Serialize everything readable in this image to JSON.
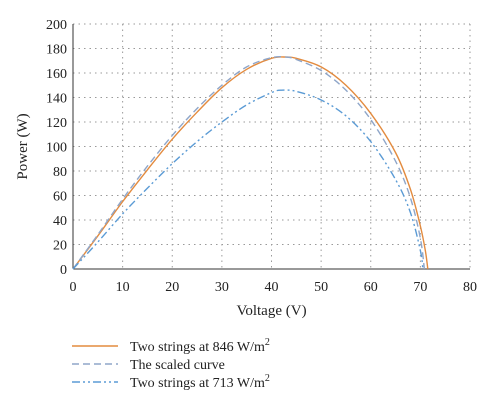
{
  "chart_data": {
    "type": "line",
    "title": "",
    "xlabel": "Voltage (V)",
    "ylabel": "Power (W)",
    "xlim": [
      0,
      80
    ],
    "ylim": [
      0,
      200
    ],
    "xticks": [
      0,
      10,
      20,
      30,
      40,
      50,
      60,
      70,
      80
    ],
    "yticks": [
      0,
      20,
      40,
      60,
      80,
      100,
      120,
      140,
      160,
      180,
      200
    ],
    "grid": "dotted horizontal and vertical",
    "legend_position": "bottom-left",
    "series": [
      {
        "name": "Two strings at 846 W/m2",
        "legend": {
          "base": "Two strings at 846 W/m",
          "sup": "2"
        },
        "color": "#E38B3F",
        "dash": "solid",
        "points": [
          [
            0,
            0
          ],
          [
            5,
            27
          ],
          [
            10,
            55
          ],
          [
            15,
            81
          ],
          [
            20,
            106
          ],
          [
            25,
            128
          ],
          [
            30,
            148
          ],
          [
            35,
            163
          ],
          [
            40,
            172
          ],
          [
            43,
            173
          ],
          [
            45,
            172
          ],
          [
            50,
            165
          ],
          [
            55,
            150
          ],
          [
            60,
            127
          ],
          [
            65,
            95
          ],
          [
            68,
            65
          ],
          [
            70,
            35
          ],
          [
            71,
            15
          ],
          [
            71.5,
            0
          ]
        ]
      },
      {
        "name": "The scaled curve",
        "legend": {
          "base": "The scaled curve",
          "sup": ""
        },
        "color": "#8FA6C9",
        "dash": "dashed",
        "points": [
          [
            0,
            0
          ],
          [
            5,
            28
          ],
          [
            10,
            57
          ],
          [
            15,
            84
          ],
          [
            20,
            109
          ],
          [
            25,
            131
          ],
          [
            30,
            150
          ],
          [
            35,
            165
          ],
          [
            40,
            172.5
          ],
          [
            43,
            173
          ],
          [
            45,
            171
          ],
          [
            50,
            162
          ],
          [
            55,
            146
          ],
          [
            60,
            122
          ],
          [
            65,
            88
          ],
          [
            68,
            58
          ],
          [
            70,
            25
          ],
          [
            70.8,
            0
          ]
        ]
      },
      {
        "name": "Two strings at 713 W/m2",
        "legend": {
          "base": "Two strings at 713 W/m",
          "sup": "2"
        },
        "color": "#5B9BD5",
        "dash": "dash-dot-dot",
        "points": [
          [
            0,
            0
          ],
          [
            5,
            22
          ],
          [
            10,
            45
          ],
          [
            15,
            66
          ],
          [
            20,
            86
          ],
          [
            25,
            104
          ],
          [
            30,
            120
          ],
          [
            35,
            134
          ],
          [
            40,
            144
          ],
          [
            42,
            146
          ],
          [
            45,
            145
          ],
          [
            50,
            138
          ],
          [
            55,
            125
          ],
          [
            60,
            104
          ],
          [
            65,
            73
          ],
          [
            68,
            46
          ],
          [
            70,
            15
          ],
          [
            70.5,
            0
          ]
        ]
      }
    ]
  }
}
